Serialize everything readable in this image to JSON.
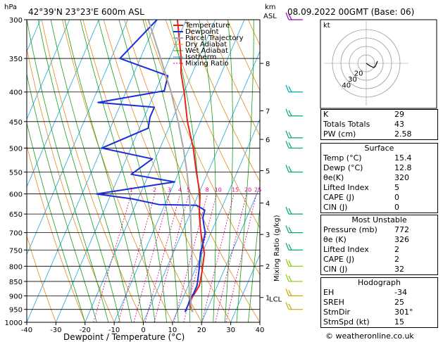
{
  "header": {
    "location": "42°39'N  23°23'E  600m  ASL",
    "datetime": "08.09.2022  00GMT  (Base: 06)",
    "hpa_label": "hPa",
    "km_label": "km",
    "asl_label": "ASL"
  },
  "legend": [
    "Temperature",
    "Dewpoint",
    "Parcel Trajectory",
    "Dry Adiabat",
    "Wet Adiabat",
    "Isotherm",
    "Mixing Ratio"
  ],
  "colors": {
    "temperature": "#e8221b",
    "dewpoint": "#1b2fd8",
    "parcel": "#a8a8a8",
    "dry": "#e88a1a",
    "wet": "#15a015",
    "iso": "#1aa6e0",
    "mixing": "#e0008a"
  },
  "chart_data": {
    "type": "line",
    "title": "Skew-T log-P diagram",
    "xlabel": "Dewpoint / Temperature (°C)",
    "ylabel": "hPa",
    "right_label": "Mixing Ratio (g/kg)",
    "xlim": [
      -40,
      40
    ],
    "ylim": [
      1000,
      300
    ],
    "x_ticks": [
      -40,
      -30,
      -20,
      -10,
      0,
      10,
      20,
      30,
      40
    ],
    "pressure_ticks": [
      300,
      350,
      400,
      450,
      500,
      550,
      600,
      650,
      700,
      750,
      800,
      850,
      900,
      950,
      1000
    ],
    "km_ticks": [
      {
        "label": "8",
        "p": 357
      },
      {
        "label": "7",
        "p": 431
      },
      {
        "label": "6",
        "p": 483
      },
      {
        "label": "5",
        "p": 547
      },
      {
        "label": "4",
        "p": 622
      },
      {
        "label": "3",
        "p": 705
      },
      {
        "label": "2",
        "p": 799
      },
      {
        "label": "1",
        "p": 906
      }
    ],
    "lcl_label": "LCL",
    "lcl_p": 910,
    "mixing_ratio_labels": [
      "1",
      "2",
      "3",
      "4",
      "5",
      "8",
      "10",
      "15",
      "20",
      "25"
    ],
    "mixing_ratio_values": [
      1,
      2,
      3,
      4,
      5,
      8,
      10,
      15,
      20,
      25
    ],
    "series": [
      {
        "name": "Temperature",
        "p": [
          960,
          935,
          910,
          890,
          865,
          850,
          815,
          785,
          760,
          700,
          650,
          600,
          550,
          500,
          450,
          400,
          370,
          350,
          300
        ],
        "t": [
          15.4,
          13.5,
          13.0,
          13.4,
          13.8,
          13.5,
          12.6,
          11.6,
          10.8,
          6.5,
          3.2,
          0.5,
          -4,
          -8.6,
          -14.5,
          -20,
          -24,
          -26,
          -33
        ]
      },
      {
        "name": "Dewpoint",
        "p": [
          960,
          935,
          910,
          890,
          865,
          850,
          815,
          785,
          760,
          740,
          700,
          680,
          660,
          640,
          628,
          626,
          612,
          600,
          572,
          555,
          522,
          500,
          462,
          442,
          425,
          417,
          398,
          375,
          350,
          300
        ],
        "t": [
          12.8,
          12.8,
          12.6,
          13,
          13,
          12.6,
          11.5,
          10.4,
          9.4,
          9,
          8,
          6.5,
          5,
          4.5,
          1,
          -12,
          -22,
          -35,
          -10,
          -26,
          -21,
          -40,
          -27,
          -28,
          -28,
          -48,
          -27,
          -28,
          -47,
          -40
        ]
      },
      {
        "name": "Parcel Trajectory",
        "p": [
          960,
          930,
          910,
          880,
          850,
          800,
          750,
          700,
          650,
          600,
          550,
          500,
          450,
          400,
          350,
          300
        ],
        "t": [
          15.4,
          13.6,
          12.7,
          11.6,
          10.5,
          8.4,
          6,
          3.2,
          0.2,
          -3.2,
          -7.2,
          -12,
          -17.7,
          -24.5,
          -33,
          -43
        ]
      }
    ]
  },
  "hodograph": {
    "label": "kt",
    "ring_labels": [
      "20",
      "30",
      "40"
    ]
  },
  "indices": [
    {
      "label": "K",
      "value": "29"
    },
    {
      "label": "Totals Totals",
      "value": "43"
    },
    {
      "label": "PW (cm)",
      "value": "2.58"
    }
  ],
  "surface": {
    "title": "Surface",
    "rows": [
      {
        "label": "Temp (°C)",
        "value": "15.4"
      },
      {
        "label": "Dewp (°C)",
        "value": "12.8"
      },
      {
        "label": "θe(K)",
        "value": "320"
      },
      {
        "label": "Lifted Index",
        "value": "5"
      },
      {
        "label": "CAPE (J)",
        "value": "0"
      },
      {
        "label": "CIN (J)",
        "value": "0"
      }
    ]
  },
  "unstable": {
    "title": "Most Unstable",
    "rows": [
      {
        "label": "Pressure (mb)",
        "value": "772"
      },
      {
        "label": "θe (K)",
        "value": "326"
      },
      {
        "label": "Lifted Index",
        "value": "2"
      },
      {
        "label": "CAPE (J)",
        "value": "2"
      },
      {
        "label": "CIN (J)",
        "value": "32"
      }
    ]
  },
  "hodo_table": {
    "title": "Hodograph",
    "rows": [
      {
        "label": "EH",
        "value": "-34"
      },
      {
        "label": "SREH",
        "value": "25"
      },
      {
        "label": "StmDir",
        "value": "301°"
      },
      {
        "label": "StmSpd (kt)",
        "value": "15"
      }
    ]
  },
  "credit": "© weatheronline.co.uk"
}
